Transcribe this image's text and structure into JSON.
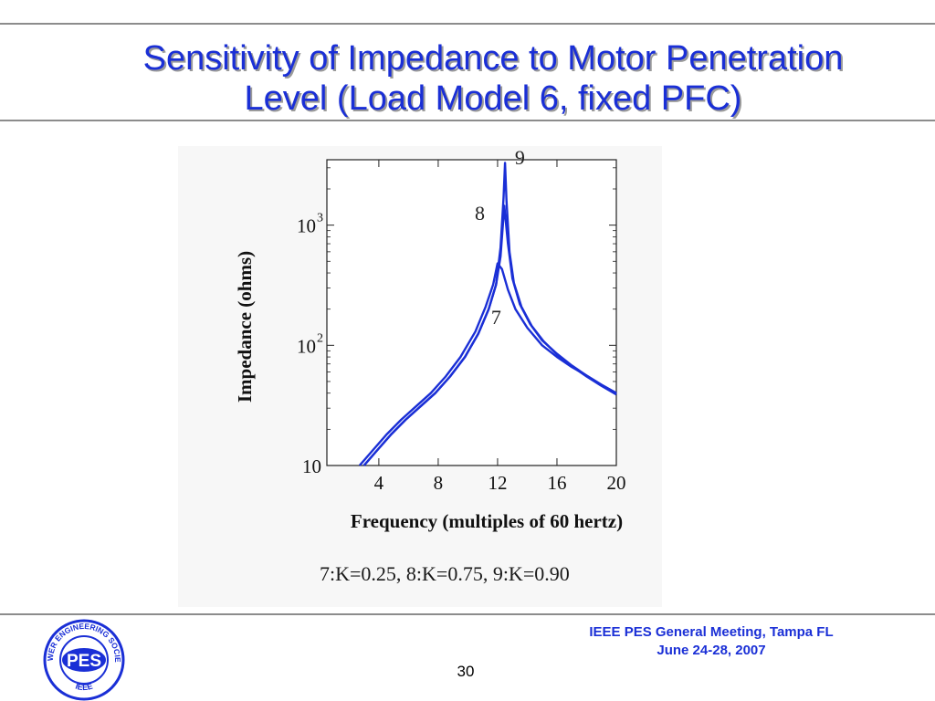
{
  "slide": {
    "title_line1": "Sensitivity of Impedance to Motor Penetration",
    "title_line2": "Level (Load Model 6, fixed PFC)",
    "caption": "7:K=0.25, 8:K=0.75, 9:K=0.90",
    "footer_line1": "IEEE PES General Meeting, Tampa FL",
    "footer_line2": "June 24-28, 2007",
    "page_number": "30",
    "logo": {
      "center_text": "PES",
      "ring_top": "POWER ENGINEERING SOCIETY",
      "ring_bottom": "IEEE",
      "color": "#1a2fd6"
    }
  },
  "chart_data": {
    "type": "line",
    "title": "",
    "xlabel": "Frequency (multiples of 60 hertz)",
    "ylabel": "Impedance (ohms)",
    "xlim": [
      0.5,
      20
    ],
    "ylim": [
      10,
      3500
    ],
    "yscale": "log",
    "x_ticks": [
      4,
      8,
      12,
      16,
      20
    ],
    "y_ticks": [
      {
        "value": 10,
        "base": "10",
        "exp": ""
      },
      {
        "value": 100,
        "base": "10",
        "exp": "2"
      },
      {
        "value": 1000,
        "base": "10",
        "exp": "3"
      }
    ],
    "grid": false,
    "line_color": "#1a2fd6",
    "series": [
      {
        "name": "7",
        "x": [
          2.7,
          3.5,
          4.5,
          5.5,
          6.5,
          7.5,
          8.5,
          9.5,
          10.5,
          11.2,
          11.7,
          12.0,
          12.3,
          12.7,
          13.2,
          14.0,
          15.0,
          16.0,
          17.0,
          18.0,
          19.0,
          20.0
        ],
        "y": [
          10,
          13,
          18,
          24,
          31,
          40,
          55,
          80,
          130,
          210,
          320,
          480,
          430,
          290,
          200,
          140,
          100,
          80,
          66,
          56,
          47,
          40
        ]
      },
      {
        "name": "8",
        "x": [
          3.0,
          3.8,
          4.8,
          5.8,
          6.8,
          7.8,
          8.8,
          9.8,
          10.7,
          11.4,
          11.9,
          12.2,
          12.45,
          12.7,
          13.0,
          13.5,
          14.2,
          15.0,
          16.0,
          17.0,
          18.0,
          19.0,
          20.0
        ],
        "y": [
          10,
          13,
          18,
          24,
          31,
          40,
          55,
          80,
          125,
          200,
          320,
          550,
          1450,
          700,
          360,
          220,
          150,
          110,
          85,
          68,
          56,
          47,
          40
        ]
      },
      {
        "name": "9",
        "x": [
          3.0,
          3.8,
          4.8,
          5.8,
          6.8,
          7.8,
          8.8,
          9.8,
          10.7,
          11.4,
          11.9,
          12.2,
          12.4,
          12.5,
          12.6,
          12.8,
          13.1,
          13.6,
          14.3,
          15.1,
          16.0,
          17.0,
          18.0,
          19.0,
          20.0
        ],
        "y": [
          10,
          13,
          18,
          24,
          31,
          40,
          55,
          80,
          125,
          200,
          320,
          650,
          1700,
          3300,
          1600,
          600,
          330,
          210,
          145,
          108,
          84,
          67,
          55,
          46,
          39
        ]
      }
    ],
    "annotations": [
      {
        "text": "9",
        "x": 13.5,
        "y": 3200
      },
      {
        "text": "8",
        "x": 10.8,
        "y": 1100
      },
      {
        "text": "7",
        "x": 11.9,
        "y": 150
      }
    ]
  }
}
